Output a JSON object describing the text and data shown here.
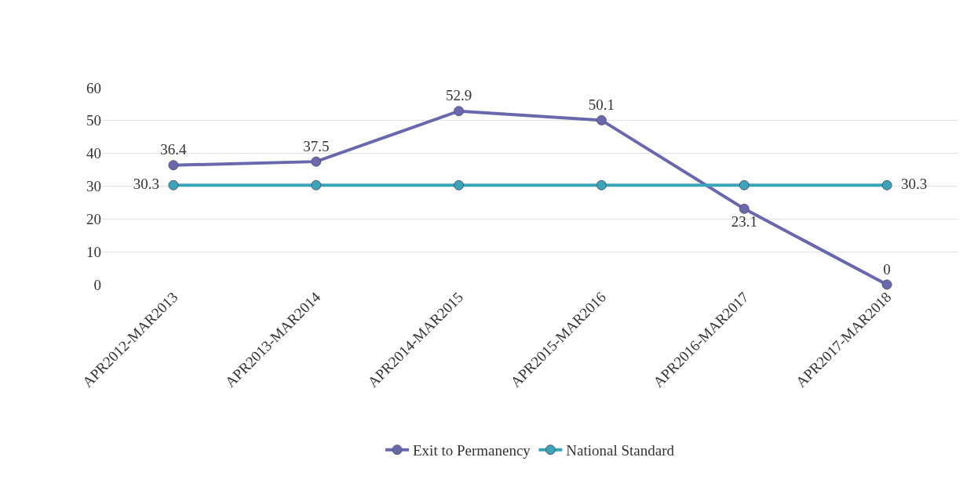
{
  "chart_data": {
    "type": "line",
    "categories": [
      "APR2012-MAR2013",
      "APR2013-MAR2014",
      "APR2014-MAR2015",
      "APR2015-MAR2016",
      "APR2016-MAR2017",
      "APR2017-MAR2018"
    ],
    "series": [
      {
        "name": "Exit to Permanency",
        "color": "#6a68ad",
        "values": [
          36.4,
          37.5,
          52.9,
          50.1,
          23.1,
          0
        ],
        "value_labels": [
          "36.4",
          "37.5",
          "52.9",
          "50.1",
          "23.1",
          "0"
        ]
      },
      {
        "name": "National Standard",
        "color": "#3aa5b8",
        "values": [
          30.3,
          30.3,
          30.3,
          30.3,
          30.3,
          30.3
        ],
        "value_labels": [
          "30.3",
          null,
          null,
          null,
          null,
          "30.3"
        ]
      }
    ],
    "ylim": [
      0,
      60
    ],
    "yticks": [
      0,
      10,
      20,
      30,
      40,
      50,
      60
    ],
    "grid": "y",
    "legend": "bottom",
    "marker": "circle",
    "line_style": "solid"
  }
}
